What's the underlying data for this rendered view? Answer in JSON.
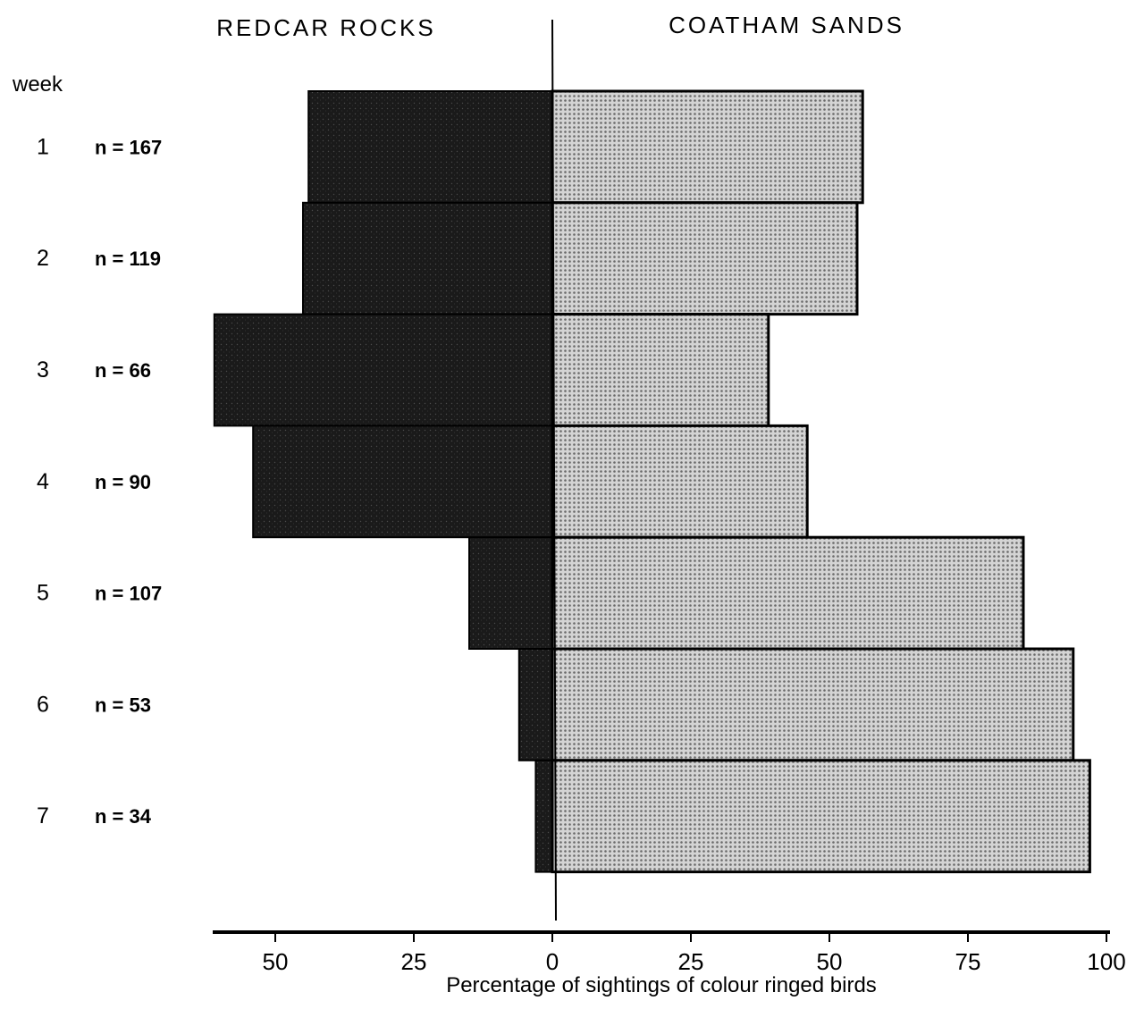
{
  "chart_data": {
    "type": "bar",
    "orientation": "horizontal-diverging",
    "left_header": "REDCAR ROCKS",
    "right_header": "COATHAM SANDS",
    "row_header": "week",
    "weeks": [
      "1",
      "2",
      "3",
      "4",
      "5",
      "6",
      "7"
    ],
    "n_labels": [
      "n = 167",
      "n = 119",
      "n = 66",
      "n = 90",
      "n = 107",
      "n = 53",
      "n = 34"
    ],
    "series": [
      {
        "name": "REDCAR ROCKS",
        "side": "left",
        "values": [
          44,
          45,
          61,
          54,
          15,
          6,
          3
        ]
      },
      {
        "name": "COATHAM SANDS",
        "side": "right",
        "values": [
          56,
          55,
          39,
          46,
          85,
          94,
          97
        ]
      }
    ],
    "xlabel": "Percentage of sightings of colour ringed birds",
    "ticks": [
      {
        "value": -50,
        "label": "50"
      },
      {
        "value": -25,
        "label": "25"
      },
      {
        "value": 0,
        "label": "0"
      },
      {
        "value": 25,
        "label": "25"
      },
      {
        "value": 50,
        "label": "50"
      },
      {
        "value": 75,
        "label": "75"
      },
      {
        "value": 100,
        "label": "100"
      }
    ],
    "xlim": [
      -60,
      100
    ],
    "colors": {
      "left_fill": "#1c1c1c",
      "right_fill": "#c9c9c9",
      "stroke": "#000000"
    }
  }
}
